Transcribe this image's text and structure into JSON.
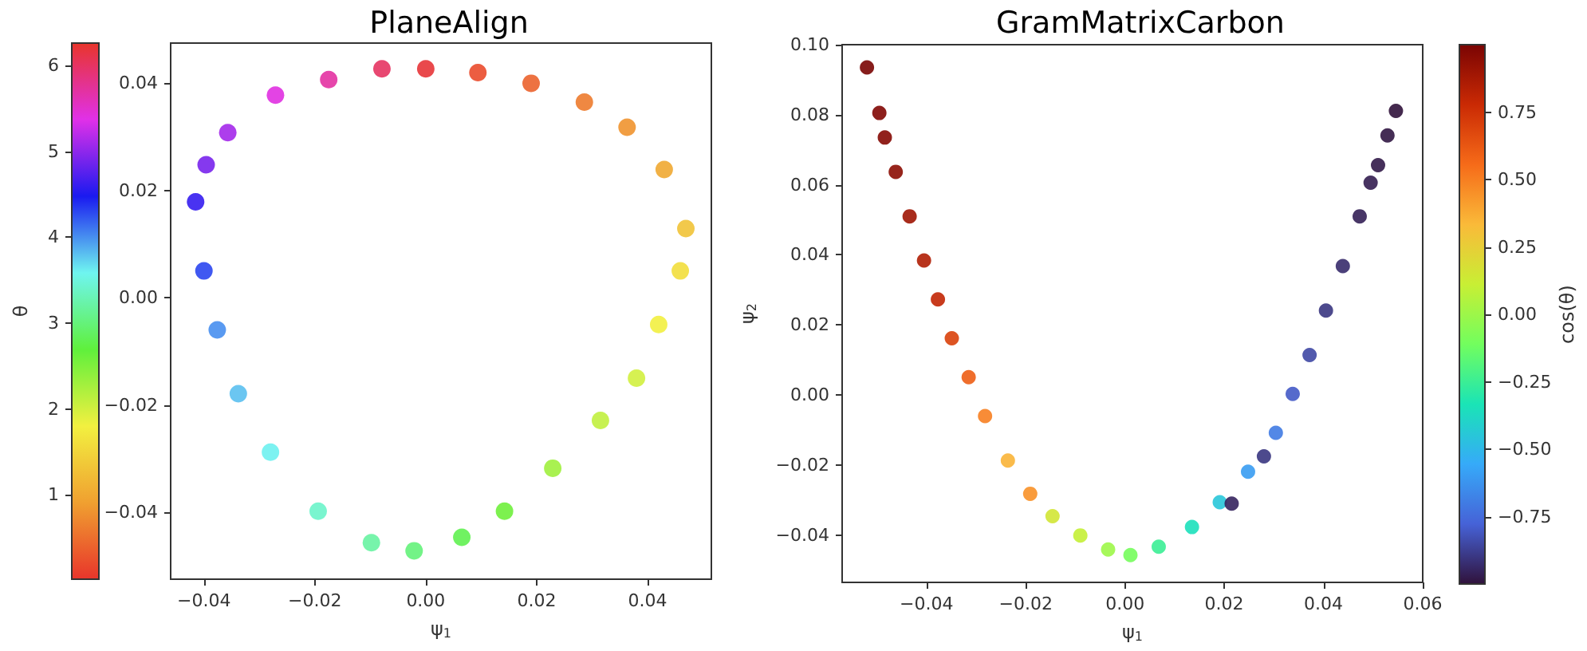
{
  "chart_data": [
    {
      "type": "scatter",
      "title": "PlaneAlign",
      "xlabel": "ψ$_{1}$",
      "clabel": "θ",
      "xlim": [
        -0.046,
        0.0515
      ],
      "ylim": [
        -0.0525,
        0.0475
      ],
      "xticks": [
        {
          "value": -0.04,
          "label": "−0.04"
        },
        {
          "value": -0.02,
          "label": "−0.02"
        },
        {
          "value": 0,
          "label": "0.00"
        },
        {
          "value": 0.02,
          "label": "0.02"
        },
        {
          "value": 0.04,
          "label": "0.04"
        }
      ],
      "yticks": [
        {
          "value": -0.04,
          "label": "−0.04"
        },
        {
          "value": -0.02,
          "label": "−0.02"
        },
        {
          "value": 0,
          "label": "0.00"
        },
        {
          "value": 0.02,
          "label": "0.02"
        },
        {
          "value": 0.04,
          "label": "0.04"
        }
      ],
      "clim": [
        0.02,
        6.26
      ],
      "cticks": [
        1,
        2,
        3,
        4,
        5,
        6
      ],
      "marker": "circle",
      "grid": false,
      "x": [
        0.0094,
        0.019,
        0.0286,
        0.0363,
        0.043,
        0.0469,
        0.0459,
        0.042,
        0.038,
        0.0315,
        0.0229,
        0.0142,
        0.0065,
        -0.0021,
        -0.0098,
        -0.0194,
        -0.028,
        -0.0338,
        -0.0376,
        -0.04,
        -0.0415,
        -0.0396,
        -0.0357,
        -0.0271,
        -0.0175,
        -0.0079,
        0.0
      ],
      "values": [
        0.042,
        0.04,
        0.0365,
        0.0318,
        0.0239,
        0.0129,
        0.005,
        -0.005,
        -0.015,
        -0.0229,
        -0.0318,
        -0.0398,
        -0.0447,
        -0.0472,
        -0.0457,
        -0.0398,
        -0.0288,
        -0.0179,
        -0.006,
        0.005,
        0.0179,
        0.0248,
        0.0308,
        0.0378,
        0.0407,
        0.0427,
        0.0427
      ],
      "cvalues": [
        0.2,
        0.4,
        0.6,
        0.8,
        1.0,
        1.3,
        1.6,
        1.8,
        2.0,
        2.1,
        2.3,
        2.6,
        2.8,
        3.0,
        3.2,
        3.4,
        3.6,
        3.8,
        4.0,
        4.3,
        4.6,
        4.9,
        5.1,
        5.4,
        5.7,
        6.0,
        6.2
      ]
    },
    {
      "type": "scatter",
      "title": "GramMatrixCarbon",
      "xlabel": "ψ$_{1}$",
      "ylabel": "ψ$_{2}$",
      "clabel": "cos(θ)",
      "xlim": [
        -0.057,
        0.06
      ],
      "ylim": [
        -0.0535,
        0.1
      ],
      "xticks": [
        {
          "value": -0.04,
          "label": "−0.04"
        },
        {
          "value": -0.02,
          "label": "−0.02"
        },
        {
          "value": 0,
          "label": "0.00"
        },
        {
          "value": 0.02,
          "label": "0.02"
        },
        {
          "value": 0.04,
          "label": "0.04"
        },
        {
          "value": 0.06,
          "label": "0.06"
        }
      ],
      "yticks": [
        {
          "value": -0.04,
          "label": "−0.04"
        },
        {
          "value": -0.02,
          "label": "−0.02"
        },
        {
          "value": 0,
          "label": "0.00"
        },
        {
          "value": 0.02,
          "label": "0.02"
        },
        {
          "value": 0.04,
          "label": "0.04"
        },
        {
          "value": 0.06,
          "label": "0.06"
        },
        {
          "value": 0.08,
          "label": "0.08"
        },
        {
          "value": 0.1,
          "label": "0.10"
        }
      ],
      "clim": [
        -1,
        1
      ],
      "cticks": [
        {
          "value": -0.75,
          "label": "−0.75"
        },
        {
          "value": -0.5,
          "label": "−0.50"
        },
        {
          "value": -0.25,
          "label": "−0.25"
        },
        {
          "value": 0,
          "label": "0.00"
        },
        {
          "value": 0.25,
          "label": "0.25"
        },
        {
          "value": 0.5,
          "label": "0.50"
        },
        {
          "value": 0.75,
          "label": "0.75"
        }
      ],
      "marker": "circle",
      "grid": false,
      "x": [
        -0.052,
        -0.0495,
        -0.0484,
        -0.0462,
        -0.0434,
        -0.0405,
        -0.0377,
        -0.0349,
        -0.0315,
        -0.0282,
        -0.0236,
        -0.0191,
        -0.0146,
        -0.009,
        -0.0034,
        0.0011,
        0.0068,
        0.0135,
        0.0191,
        0.0248,
        0.0304,
        0.0338,
        0.0372,
        0.0405,
        0.0439,
        0.0473,
        0.0495,
        0.051,
        0.0529,
        0.0546,
        0.0215,
        0.028
      ],
      "values": [
        0.0935,
        0.0805,
        0.0735,
        0.0637,
        0.051,
        0.0384,
        0.0273,
        0.0162,
        0.0051,
        -0.006,
        -0.0187,
        -0.0282,
        -0.0346,
        -0.0401,
        -0.0441,
        -0.0457,
        -0.0433,
        -0.0377,
        -0.0306,
        -0.0219,
        -0.0108,
        0.0003,
        0.0114,
        0.0241,
        0.0368,
        0.051,
        0.0606,
        0.0656,
        0.0741,
        0.0811,
        -0.031,
        -0.0175
      ],
      "cvalues": [
        1.0,
        0.98,
        0.97,
        0.95,
        0.9,
        0.85,
        0.8,
        0.7,
        0.6,
        0.5,
        0.35,
        0.45,
        0.15,
        0.1,
        0.0,
        -0.1,
        -0.25,
        -0.35,
        -0.45,
        -0.6,
        -0.7,
        -0.8,
        -0.85,
        -0.9,
        -0.93,
        -0.96,
        -0.97,
        -0.98,
        -0.99,
        -1.0,
        -0.95,
        -0.9
      ]
    }
  ]
}
